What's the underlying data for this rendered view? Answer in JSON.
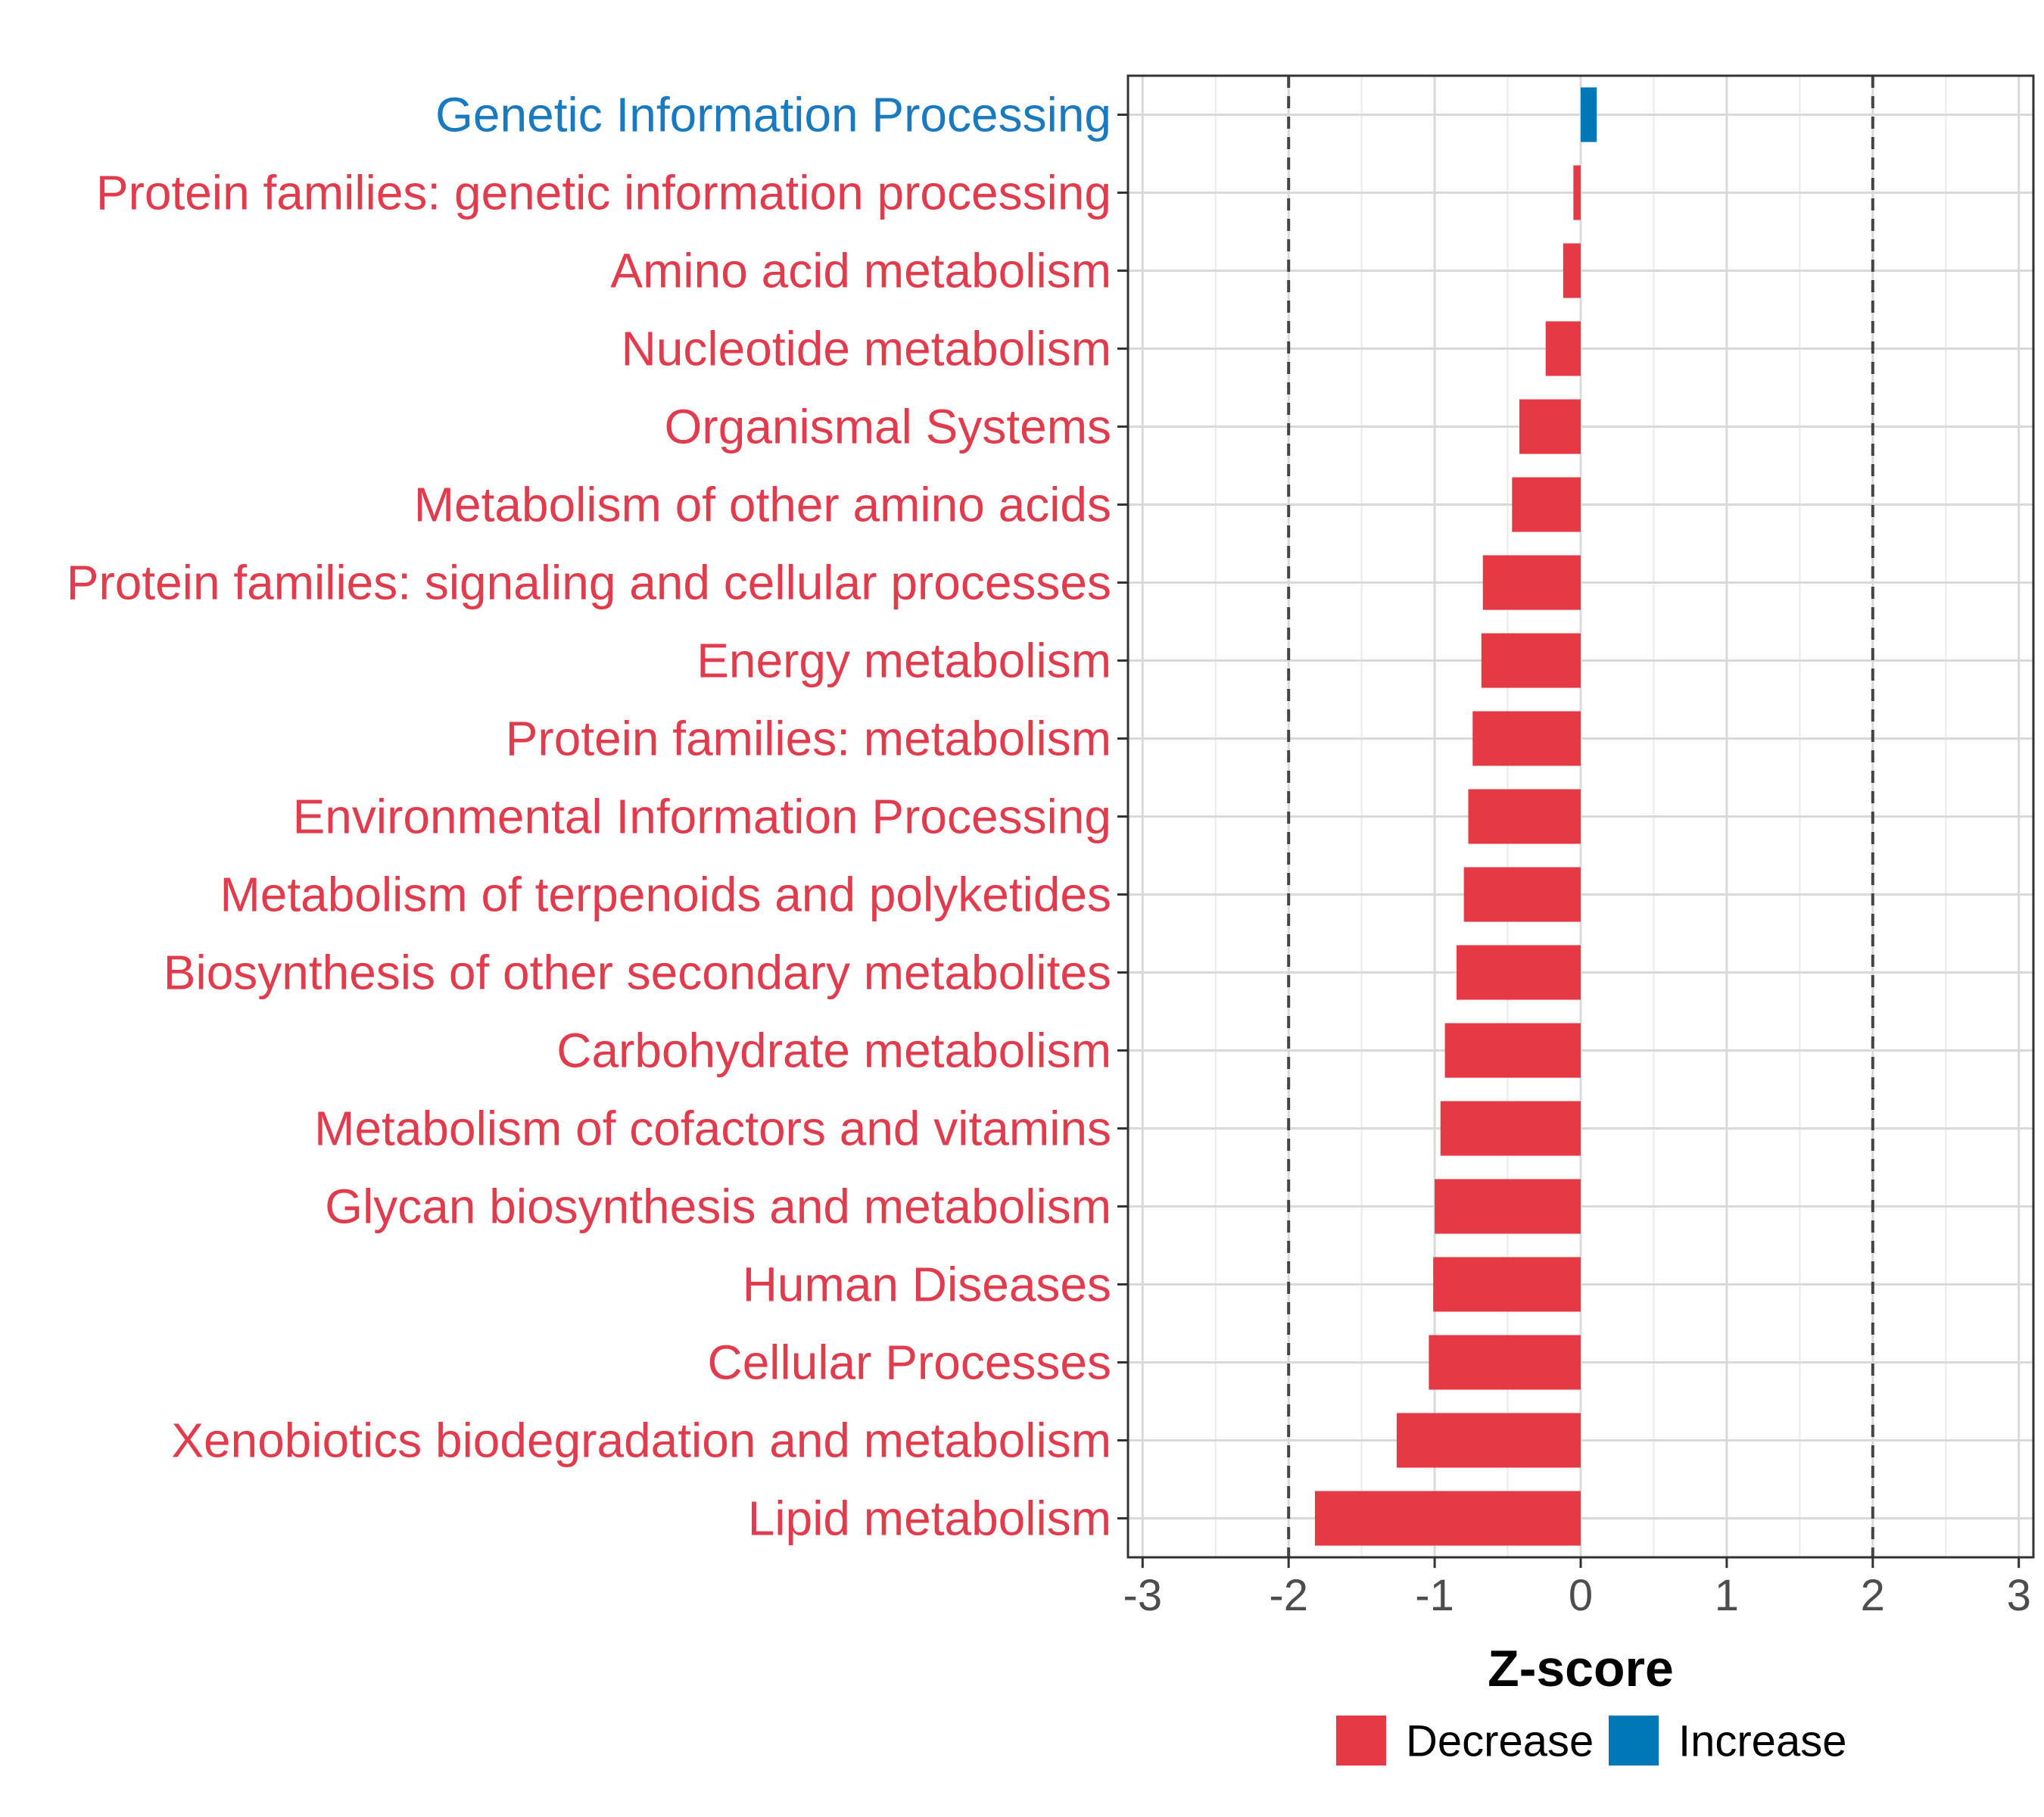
{
  "chart_data": {
    "type": "bar",
    "orientation": "horizontal",
    "title": "",
    "xlabel": "Z-score",
    "ylabel": "",
    "xlim": [
      -3.1,
      3.1
    ],
    "xticks": [
      -3,
      -2,
      -1,
      0,
      1,
      2,
      3
    ],
    "xtick_labels": [
      "-3",
      "-2",
      "-1",
      "0",
      "1",
      "2",
      "3"
    ],
    "reference_lines": [
      -2,
      2
    ],
    "grid": true,
    "categories": [
      "Genetic Information Processing",
      "Protein families: genetic information processing",
      "Amino acid metabolism",
      "Nucleotide metabolism",
      "Organismal Systems",
      "Metabolism of other amino acids",
      "Protein families: signaling and cellular processes",
      "Energy metabolism",
      "Protein families: metabolism",
      "Environmental Information Processing",
      "Metabolism of terpenoids and polyketides",
      "Biosynthesis of other secondary metabolites",
      "Carbohydrate metabolism",
      "Metabolism of cofactors and vitamins",
      "Glycan biosynthesis and metabolism",
      "Human Diseases",
      "Cellular Processes",
      "Xenobiotics biodegradation and metabolism",
      "Lipid metabolism"
    ],
    "values": [
      0.11,
      -0.05,
      -0.12,
      -0.24,
      -0.42,
      -0.47,
      -0.67,
      -0.68,
      -0.74,
      -0.77,
      -0.8,
      -0.85,
      -0.93,
      -0.96,
      -1.0,
      -1.01,
      -1.04,
      -1.26,
      -1.82
    ],
    "groups": [
      "Increase",
      "Decrease",
      "Decrease",
      "Decrease",
      "Decrease",
      "Decrease",
      "Decrease",
      "Decrease",
      "Decrease",
      "Decrease",
      "Decrease",
      "Decrease",
      "Decrease",
      "Decrease",
      "Decrease",
      "Decrease",
      "Decrease",
      "Decrease",
      "Decrease"
    ],
    "legend": {
      "position": "bottom",
      "entries": [
        {
          "label": "Decrease",
          "color": "#E63946"
        },
        {
          "label": "Increase",
          "color": "#0077B6"
        }
      ]
    },
    "colors": {
      "Decrease": "#E63946",
      "Increase": "#0077B6",
      "Decrease_label": "#E03C4D",
      "Increase_label": "#1A7ABF"
    }
  }
}
